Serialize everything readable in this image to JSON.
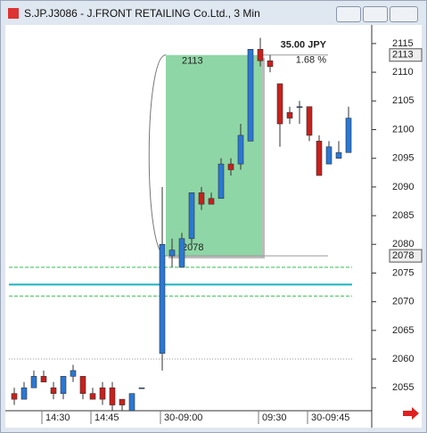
{
  "chart_data": {
    "type": "candlestick",
    "title": "S.JP.J3086 - J.FRONT RETAILING Co.Ltd., 3 Min",
    "categories": [
      null,
      null,
      null,
      "14:30",
      null,
      null,
      null,
      null,
      "14:45",
      null,
      null,
      null,
      null,
      null,
      "30-09:00",
      null,
      null,
      null,
      null,
      null,
      null,
      null,
      null,
      null,
      "09:30",
      null,
      null,
      null,
      null,
      "30-09:45",
      null,
      null,
      null,
      null
    ],
    "open": [
      2054,
      2053,
      2055,
      2057,
      2055,
      2054,
      2057,
      2057,
      2054,
      2055,
      2055,
      2053,
      2051,
      2055,
      2061,
      2078,
      2076,
      2081,
      2089,
      2088,
      2088,
      2094,
      2094,
      2098,
      2114,
      2112,
      2108,
      2103,
      2104,
      2104,
      2098,
      2094,
      2095,
      2096
    ],
    "high": [
      2055,
      2056,
      2058,
      2058,
      2056,
      2057,
      2059,
      2057,
      2055,
      2056,
      2056,
      2053,
      2054,
      2055,
      2090,
      2081,
      2082,
      2089,
      2090,
      2089,
      2095,
      2095,
      2101,
      2114,
      2116,
      2113,
      2108,
      2104,
      2105,
      2104,
      2099,
      2098,
      2098,
      2104
    ],
    "low": [
      2052,
      2053,
      2055,
      2056,
      2053,
      2053,
      2056,
      2053,
      2053,
      2052,
      2051,
      2051,
      2051,
      2055,
      2058,
      2076,
      2076,
      2080,
      2086,
      2087,
      2088,
      2092,
      2093,
      2098,
      2111,
      2110,
      2097,
      2101,
      2101,
      2098,
      2092,
      2094,
      2095,
      2096
    ],
    "close": [
      2053,
      2055,
      2057,
      2056,
      2054,
      2057,
      2058,
      2054,
      2053,
      2053,
      2052,
      2052,
      2054,
      2055,
      2080,
      2079,
      2081,
      2089,
      2087,
      2087,
      2094,
      2093,
      2099,
      2114,
      2112,
      2111,
      2101,
      2102,
      2104,
      2099,
      2092,
      2097,
      2096,
      2102
    ],
    "up_color": "#2a78d4",
    "down_color": "#c8201c",
    "ylim": [
      2051,
      2117
    ],
    "yticks": [
      2055,
      2060,
      2065,
      2070,
      2075,
      2080,
      2085,
      2090,
      2095,
      2100,
      2105,
      2110,
      2115
    ],
    "price_markers": [
      2113,
      2078
    ],
    "levels": [
      {
        "value": 2076,
        "color": "#2fbf4f",
        "style": "dashed"
      },
      {
        "value": 2071,
        "color": "#2fbf4f",
        "style": "dashed"
      },
      {
        "value": 2073,
        "color": "#19b3c2",
        "style": "solid"
      },
      {
        "value": 2060,
        "color": "#999999",
        "style": "dotted"
      }
    ],
    "measure": {
      "high": 2113,
      "low": 2078,
      "change": "35.00 JPY",
      "percent": "1.68 %",
      "color": "#8fd6a6"
    }
  }
}
